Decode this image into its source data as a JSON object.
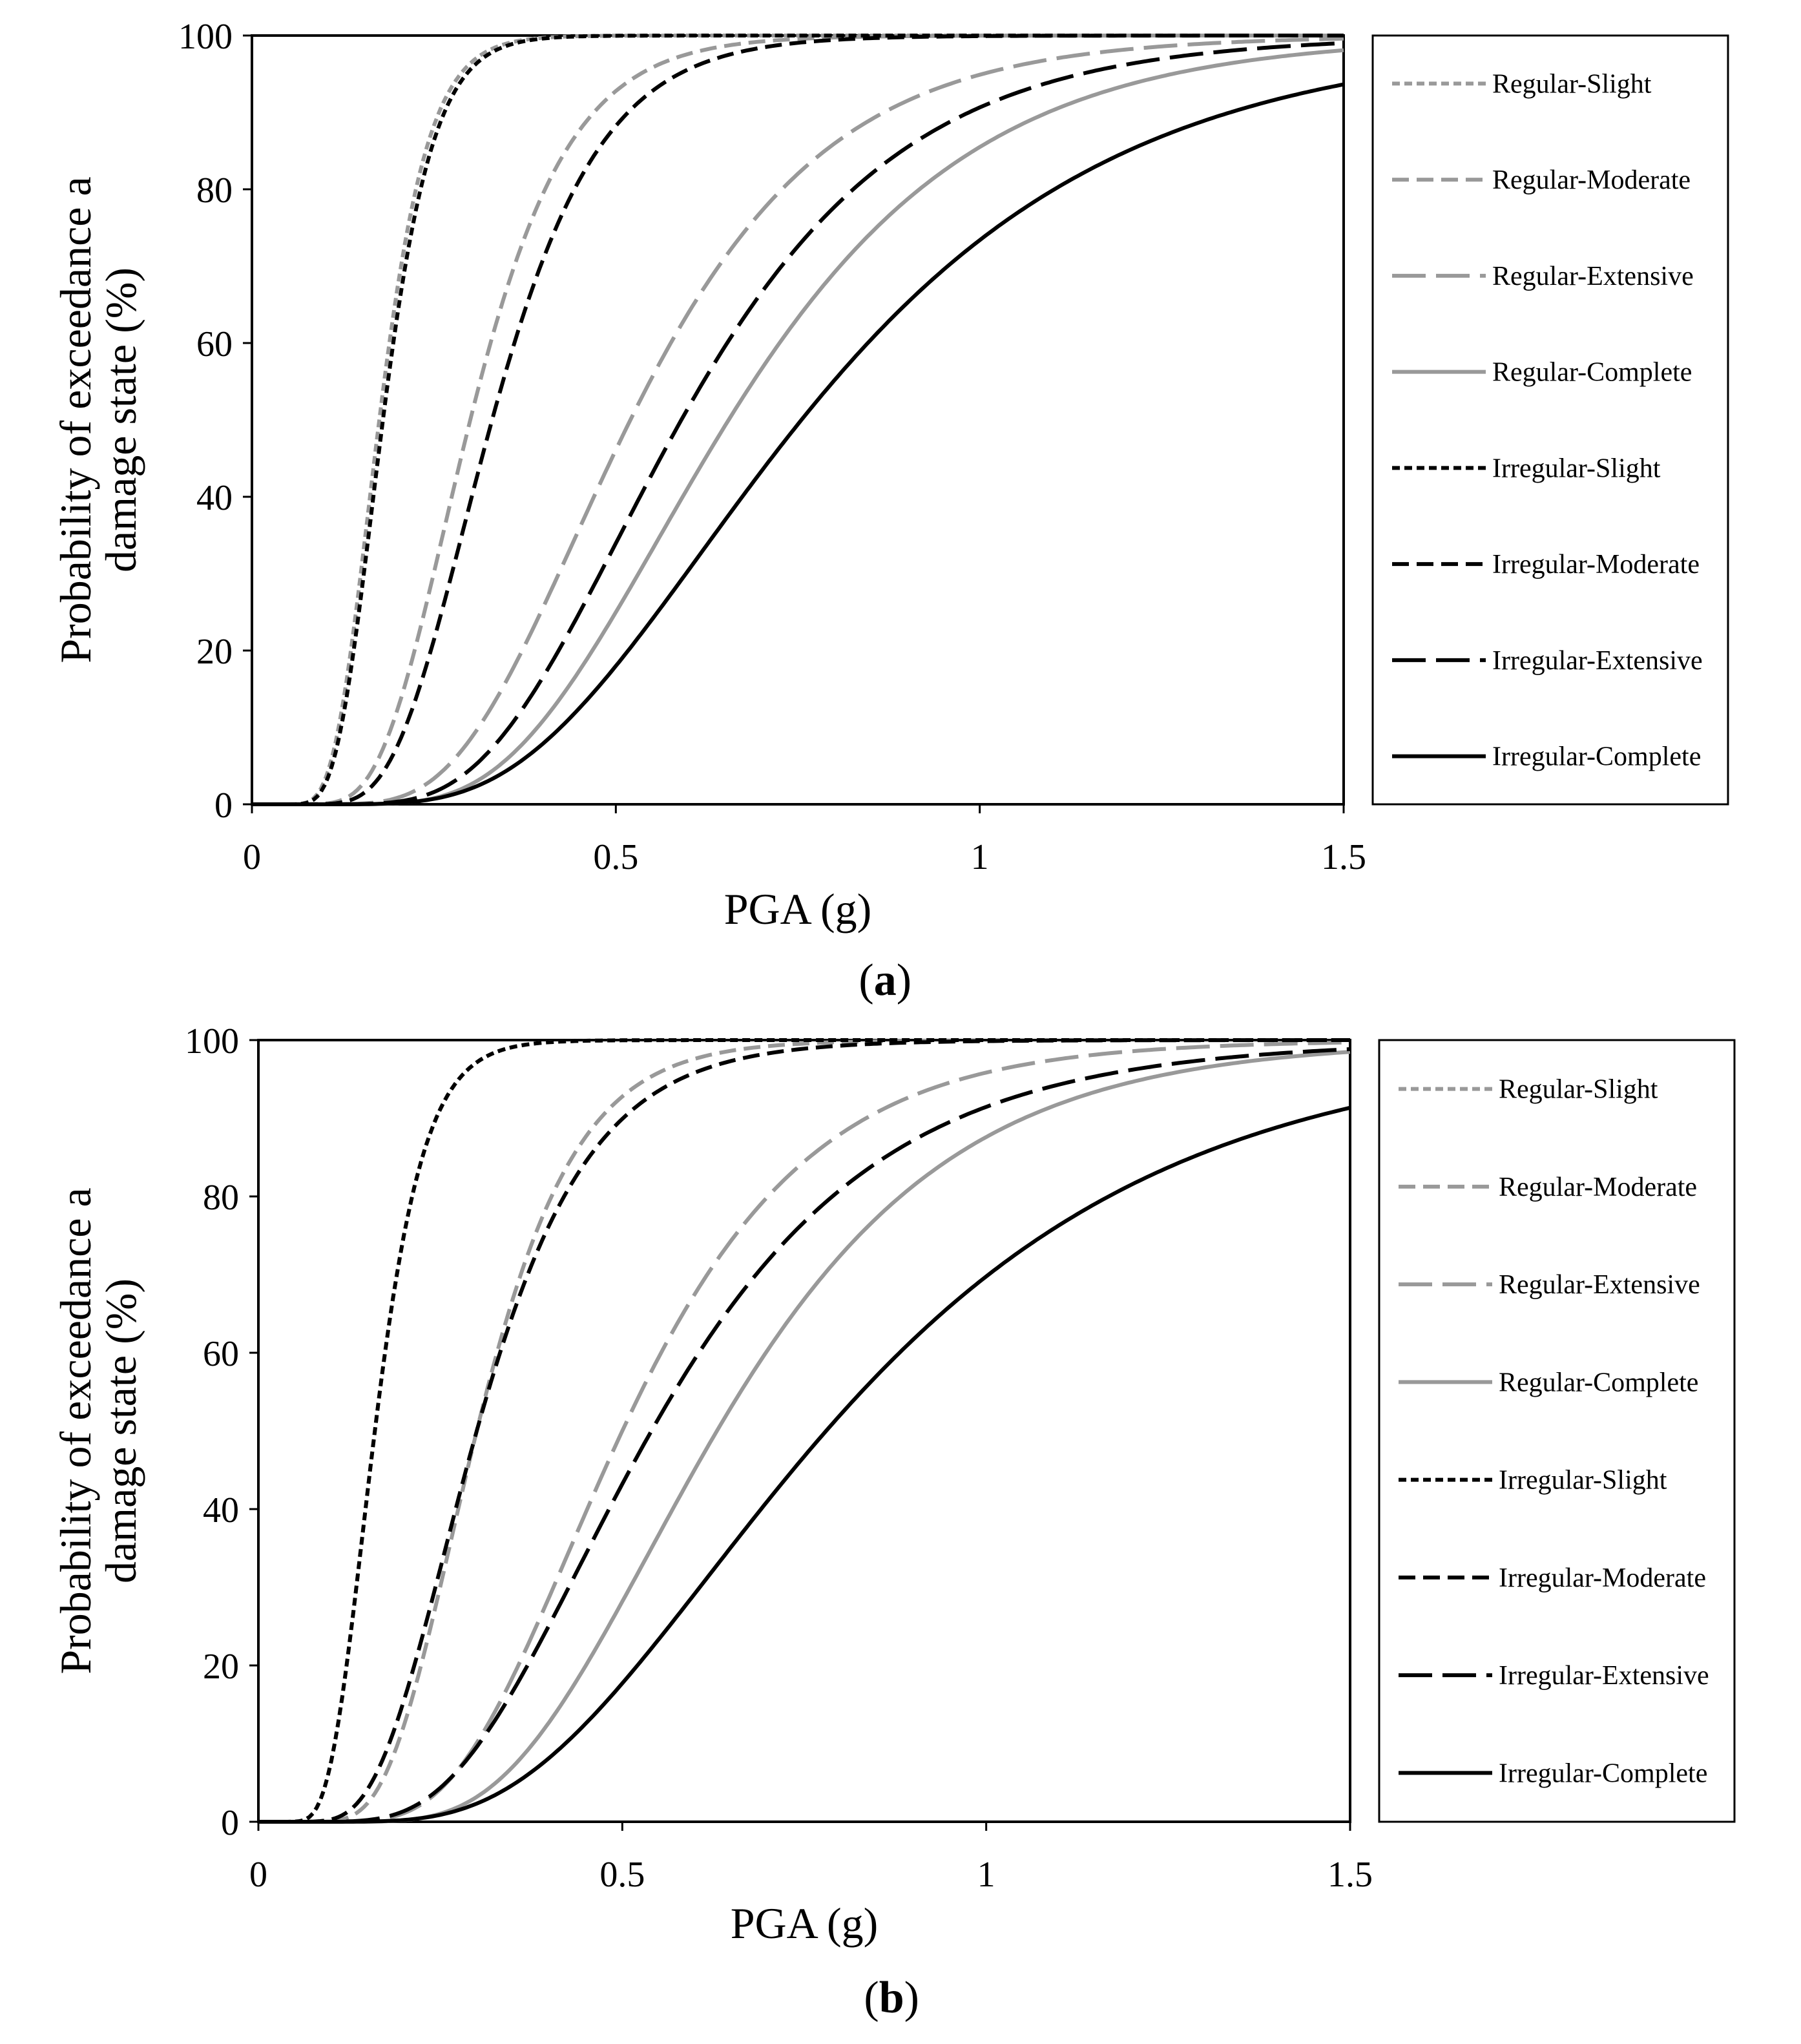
{
  "chart_data": [
    {
      "panel_label": "a",
      "type": "line",
      "xlabel": "PGA (g)",
      "ylabel_line1": "Probability of exceedance a",
      "ylabel_line2": "damage state (%)",
      "xlim": [
        0,
        1.5
      ],
      "ylim": [
        0,
        100
      ],
      "xticks": [
        "0",
        "0.5",
        "1",
        "1.5"
      ],
      "yticks": [
        "0",
        "20",
        "40",
        "60",
        "80",
        "100"
      ],
      "series": [
        {
          "name": "Regular-Slight",
          "median": 0.175,
          "beta": 0.3,
          "color": "#999999",
          "dash": "12 7"
        },
        {
          "name": "Regular-Moderate",
          "median": 0.3,
          "beta": 0.35,
          "color": "#999999",
          "dash": "26 12"
        },
        {
          "name": "Regular-Extensive",
          "median": 0.52,
          "beta": 0.4,
          "color": "#999999",
          "dash": "52 16"
        },
        {
          "name": "Regular-Complete",
          "median": 0.655,
          "beta": 0.4,
          "color": "#999999",
          "dash": ""
        },
        {
          "name": "Irregular-Slight",
          "median": 0.18,
          "beta": 0.3,
          "color": "#000000",
          "dash": "12 7"
        },
        {
          "name": "Irregular-Moderate",
          "median": 0.33,
          "beta": 0.35,
          "color": "#000000",
          "dash": "26 12"
        },
        {
          "name": "Irregular-Extensive",
          "median": 0.59,
          "beta": 0.4,
          "color": "#000000",
          "dash": "52 16"
        },
        {
          "name": "Irregular-Complete",
          "median": 0.755,
          "beta": 0.45,
          "color": "#000000",
          "dash": ""
        }
      ]
    },
    {
      "panel_label": "b",
      "type": "line",
      "xlabel": "PGA (g)",
      "ylabel_line1": "Probability of exceedance a",
      "ylabel_line2": "damage state (%)",
      "xlim": [
        0,
        1.5
      ],
      "ylim": [
        0,
        100
      ],
      "xticks": [
        "0",
        "0.5",
        "1",
        "1.5"
      ],
      "yticks": [
        "0",
        "20",
        "40",
        "60",
        "80",
        "100"
      ],
      "series": [
        {
          "name": "Regular-Slight",
          "median": 0.16,
          "beta": 0.33,
          "color": "#999999",
          "dash": "12 7"
        },
        {
          "name": "Regular-Moderate",
          "median": 0.3,
          "beta": 0.35,
          "color": "#999999",
          "dash": "26 12"
        },
        {
          "name": "Regular-Extensive",
          "median": 0.5,
          "beta": 0.4,
          "color": "#999999",
          "dash": "52 16"
        },
        {
          "name": "Regular-Complete",
          "median": 0.63,
          "beta": 0.4,
          "color": "#999999",
          "dash": ""
        },
        {
          "name": "Irregular-Slight",
          "median": 0.16,
          "beta": 0.33,
          "color": "#000000",
          "dash": "12 7"
        },
        {
          "name": "Irregular-Moderate",
          "median": 0.3,
          "beta": 0.4,
          "color": "#000000",
          "dash": "26 12"
        },
        {
          "name": "Irregular-Extensive",
          "median": 0.54,
          "beta": 0.45,
          "color": "#000000",
          "dash": "52 16"
        },
        {
          "name": "Irregular-Complete",
          "median": 0.78,
          "beta": 0.48,
          "color": "#000000",
          "dash": ""
        }
      ]
    }
  ]
}
